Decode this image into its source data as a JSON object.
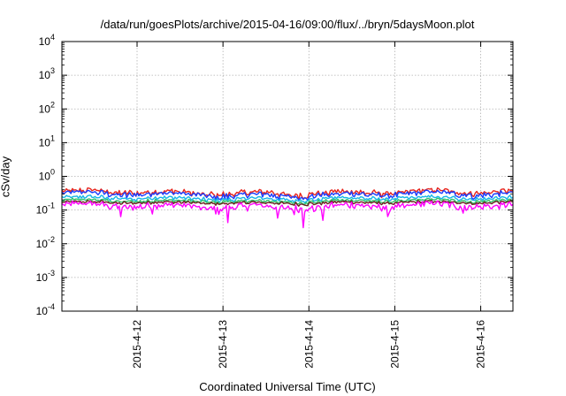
{
  "chart_data": {
    "type": "line",
    "title": "/data/run/goesPlots/archive/2015-04-16/09:00/flux/../bryn/5daysMoon.plot",
    "xlabel": "Coordinated Universal Time (UTC)",
    "ylabel": "cSv/day",
    "yscale": "log",
    "ylim": [
      0.0001,
      10000
    ],
    "yticks": [
      {
        "base": "10",
        "exp": "4"
      },
      {
        "base": "10",
        "exp": "3"
      },
      {
        "base": "10",
        "exp": "2"
      },
      {
        "base": "10",
        "exp": "1"
      },
      {
        "base": "10",
        "exp": "0"
      },
      {
        "base": "10",
        "exp": "-1"
      },
      {
        "base": "10",
        "exp": "-2"
      },
      {
        "base": "10",
        "exp": "-3"
      },
      {
        "base": "10",
        "exp": "-4"
      }
    ],
    "xlim": [
      "2015-04-11 03:00",
      "2015-04-16 09:00"
    ],
    "xticks": [
      "2015-4-12",
      "2015-4-13",
      "2015-4-14",
      "2015-4-15",
      "2015-4-16"
    ],
    "grid": true,
    "legend": "none",
    "series": [
      {
        "color": "#e8241c",
        "level": 0.33,
        "amplitude": 0.1
      },
      {
        "color": "#1a3cff",
        "level": 0.29,
        "amplitude": 0.1
      },
      {
        "color": "#17b6e6",
        "level": 0.22,
        "amplitude": 0.07
      },
      {
        "color": "#31c26a",
        "level": 0.185,
        "amplitude": 0.06
      },
      {
        "color": "#6b1f1f",
        "level": 0.165,
        "amplitude": 0.05
      },
      {
        "color": "#ff00ff",
        "level": 0.13,
        "amplitude": 0.12
      }
    ]
  }
}
